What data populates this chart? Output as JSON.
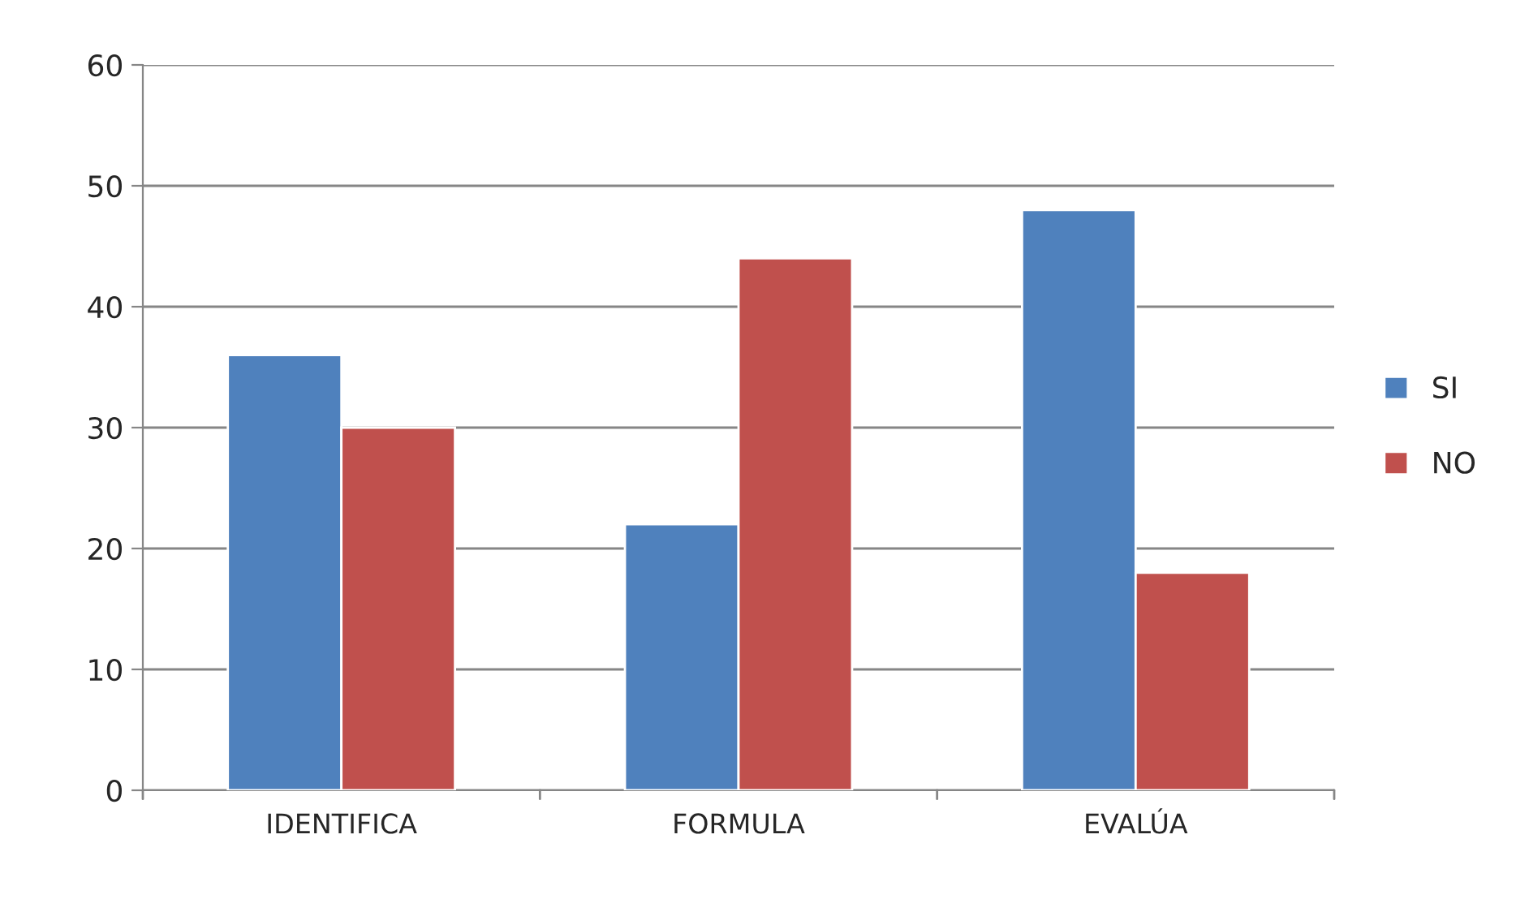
{
  "chart_data": {
    "type": "bar",
    "categories": [
      "IDENTIFICA",
      "FORMULA",
      "EVALÚA"
    ],
    "series": [
      {
        "name": "SI",
        "color": "#4f81bd",
        "values": [
          36,
          22,
          48
        ]
      },
      {
        "name": "NO",
        "color": "#c0504d",
        "values": [
          30,
          44,
          18
        ]
      }
    ],
    "ylim": [
      0,
      60
    ],
    "yticks": [
      0,
      10,
      20,
      30,
      40,
      50,
      60
    ],
    "grid": "y",
    "legend": "right"
  }
}
